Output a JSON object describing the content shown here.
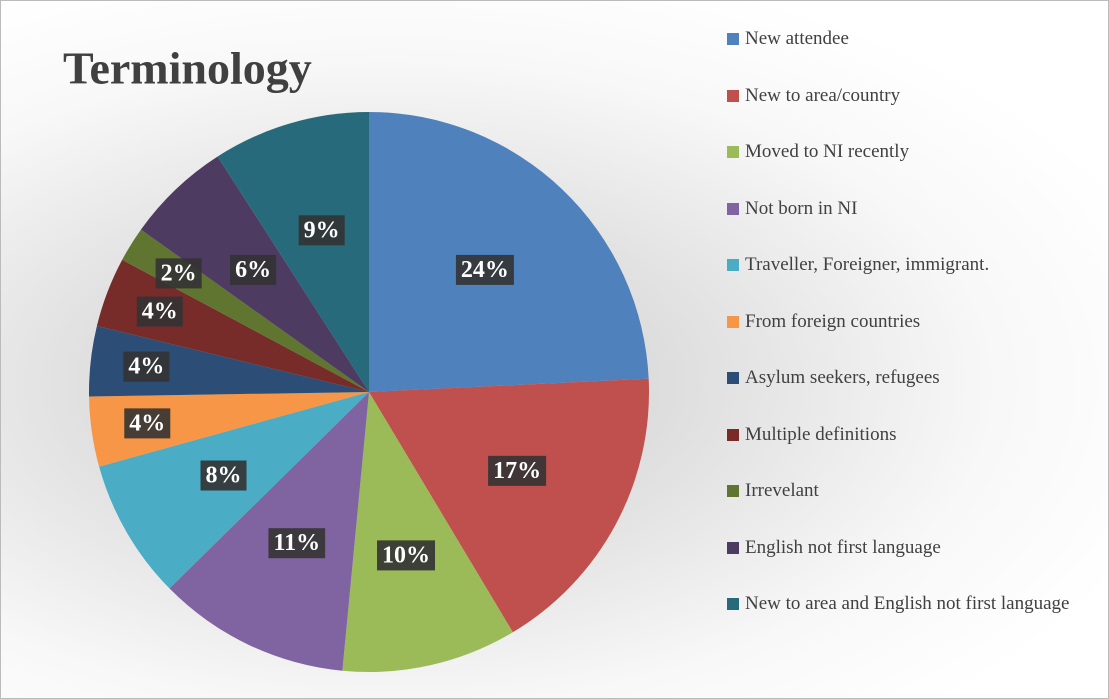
{
  "chart_data": {
    "type": "pie",
    "title": "Terminology",
    "categories": [
      "New attendee",
      "New to area/country",
      "Moved to NI recently",
      "Not born in NI",
      "Traveller, Foreigner, immigrant.",
      "From foreign countries",
      "Asylum seekers, refugees",
      "Multiple definitions",
      "Irrevelant",
      "English not first language",
      "New to area and English not first language"
    ],
    "values": [
      24,
      17,
      10,
      11,
      8,
      4,
      4,
      4,
      2,
      6,
      9
    ],
    "value_labels": [
      "24%",
      "17%",
      "10%",
      "11%",
      "8%",
      "4%",
      "4%",
      "4%",
      "2%",
      "6%",
      "9%"
    ],
    "colors": [
      "#4f81bd",
      "#c0504d",
      "#9bbb59",
      "#8064a2",
      "#4bacc6",
      "#f79646",
      "#2c4d75",
      "#772c2a",
      "#5f7530",
      "#4d3b62",
      "#276a7c"
    ],
    "legend": "right"
  }
}
